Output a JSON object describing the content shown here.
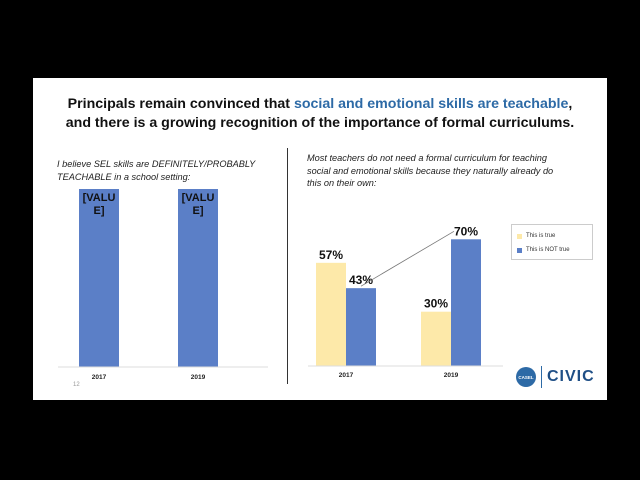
{
  "slide": {
    "title_line1_plain": "Principals remain convinced that ",
    "title_line1_highlight": "social and emotional skills are teachable",
    "title_line1_end": ",",
    "title_line2": "and there is a growing recognition of the importance of formal curriculums.",
    "page_number": "12",
    "logo_text": "CIVIC",
    "logo_seal_text": "CASEL"
  },
  "colors": {
    "blue": "#5b7fc7",
    "yellow": "#fde9a9",
    "title_highlight": "#2d6aa6"
  },
  "chart_data": [
    {
      "type": "bar",
      "caption": "I believe SEL skills are DEFINITELY/PROBABLY TEACHABLE in a school setting:",
      "categories": [
        "2017",
        "2019"
      ],
      "series": [
        {
          "name": "",
          "values": [
            100,
            100
          ],
          "labels": [
            "[VALUE]",
            "[VALUE]"
          ]
        }
      ],
      "ylim": [
        0,
        100
      ],
      "grid": false,
      "legend": "none"
    },
    {
      "type": "bar",
      "caption": "Most teachers do not need a formal curriculum for teaching social and emotional skills because they naturally already do this on their own:",
      "categories": [
        "2017",
        "2019"
      ],
      "series": [
        {
          "name": "This is true",
          "values": [
            57,
            30
          ],
          "labels": [
            "57%",
            "30%"
          ]
        },
        {
          "name": "This is NOT true",
          "values": [
            43,
            70
          ],
          "labels": [
            "43%",
            "70%"
          ]
        }
      ],
      "ylim": [
        0,
        100
      ],
      "grid": false,
      "legend": "right"
    }
  ]
}
